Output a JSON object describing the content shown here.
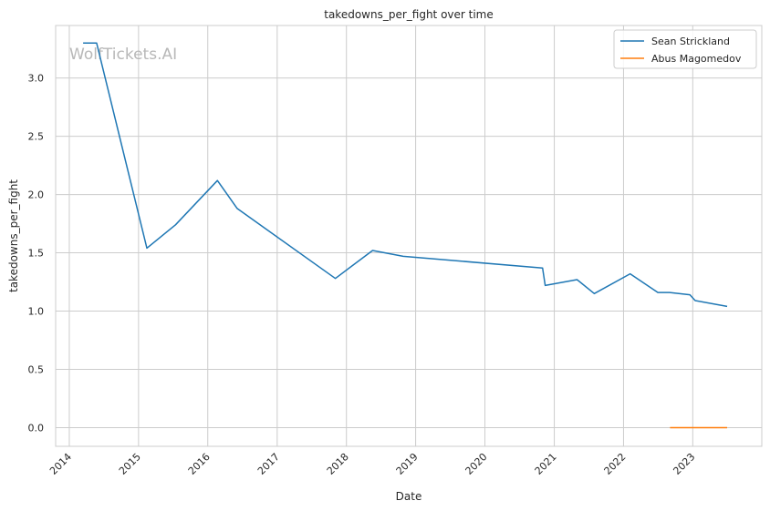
{
  "chart_data": {
    "type": "line",
    "title": "takedowns_per_fight over time",
    "xlabel": "Date",
    "ylabel": "takedowns_per_fight",
    "x_ticks": [
      "2014",
      "2015",
      "2016",
      "2017",
      "2018",
      "2019",
      "2020",
      "2021",
      "2022",
      "2023"
    ],
    "y_ticks": [
      "0.0",
      "0.5",
      "1.0",
      "1.5",
      "2.0",
      "2.5",
      "3.0"
    ],
    "xlim": [
      "2013-10-21",
      "2023-12-31"
    ],
    "ylim": [
      -0.16,
      3.45
    ],
    "grid": true,
    "legend_position": "top-right",
    "watermark": "WolfTickets.AI",
    "series": [
      {
        "name": "Sean Strickland",
        "color": "#1f77b4",
        "points": [
          {
            "date": "2014-03-15",
            "value": 3.3
          },
          {
            "date": "2014-05-25",
            "value": 3.3
          },
          {
            "date": "2015-02-14",
            "value": 1.54
          },
          {
            "date": "2015-07-15",
            "value": 1.74
          },
          {
            "date": "2016-02-21",
            "value": 2.12
          },
          {
            "date": "2016-06-04",
            "value": 1.88
          },
          {
            "date": "2017-11-04",
            "value": 1.28
          },
          {
            "date": "2018-05-19",
            "value": 1.52
          },
          {
            "date": "2018-10-27",
            "value": 1.47
          },
          {
            "date": "2020-10-31",
            "value": 1.37
          },
          {
            "date": "2020-11-14",
            "value": 1.22
          },
          {
            "date": "2021-05-01",
            "value": 1.27
          },
          {
            "date": "2021-07-31",
            "value": 1.15
          },
          {
            "date": "2022-02-05",
            "value": 1.32
          },
          {
            "date": "2022-07-01",
            "value": 1.16
          },
          {
            "date": "2022-09-01",
            "value": 1.16
          },
          {
            "date": "2022-12-17",
            "value": 1.14
          },
          {
            "date": "2023-01-14",
            "value": 1.09
          },
          {
            "date": "2023-07-01",
            "value": 1.04
          }
        ]
      },
      {
        "name": "Abus Magomedov",
        "color": "#ff7f0e",
        "points": [
          {
            "date": "2022-09-03",
            "value": 0.0
          },
          {
            "date": "2023-07-01",
            "value": 0.0
          }
        ]
      }
    ]
  }
}
